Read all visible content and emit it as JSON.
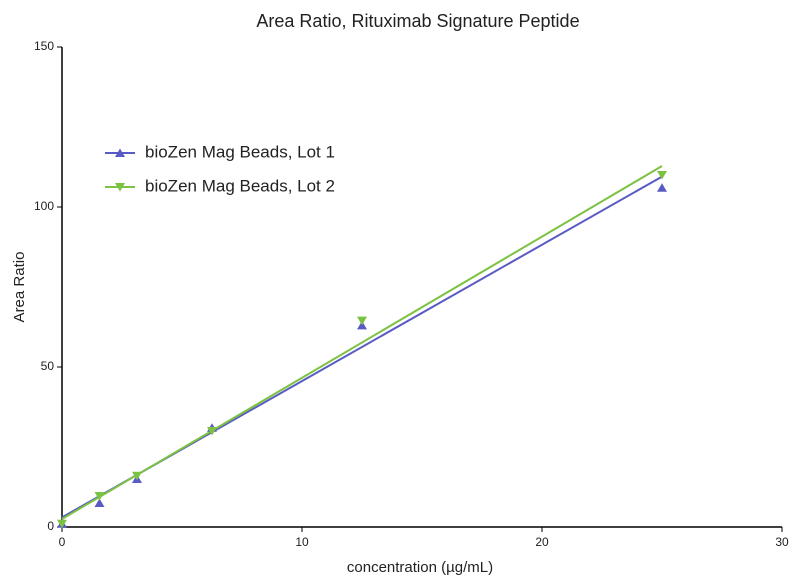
{
  "chart_data": {
    "type": "scatter",
    "title": "Area Ratio, Rituximab Signature Peptide",
    "x_label": "concentration (µg/mL)",
    "y_label": "Area Ratio",
    "xlim": [
      0,
      30
    ],
    "xticks": [
      0,
      10,
      20,
      30
    ],
    "ylim": [
      0,
      150
    ],
    "yticks": [
      0,
      50,
      100,
      150
    ],
    "legend": "upper left",
    "series": [
      {
        "name": "bioZen Mag Beads, Lot 1",
        "color": "#5a5ac4",
        "marker": "triangle-up",
        "x": [
          0,
          1.5625,
          3.125,
          6.25,
          12.5,
          25
        ],
        "values": [
          1,
          7.5,
          15,
          31,
          63,
          106
        ],
        "fit_x": [
          0,
          25
        ],
        "fit": [
          3,
          109.5
        ]
      },
      {
        "name": "bioZen Mag Beads, Lot 2",
        "color": "#7cc242",
        "marker": "triangle-down",
        "x": [
          0,
          1.5625,
          3.125,
          6.25,
          12.5,
          25
        ],
        "values": [
          1,
          9.7,
          16,
          30,
          64.5,
          110
        ],
        "fit_x": [
          0,
          25
        ],
        "fit": [
          2.5,
          112.8
        ]
      }
    ]
  }
}
